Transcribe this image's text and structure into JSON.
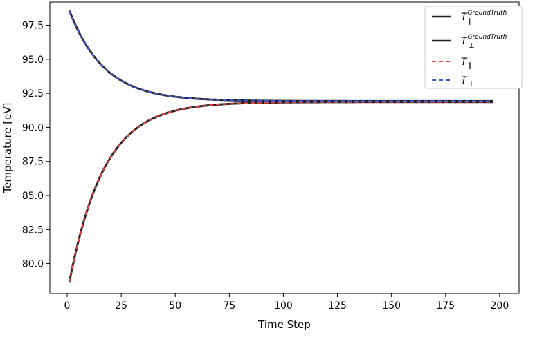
{
  "chart_data": {
    "type": "line",
    "title": "",
    "xlabel": "Time Step",
    "ylabel": "Temperature [eV]",
    "xlim": [
      -8,
      209
    ],
    "ylim": [
      77.8,
      99.2
    ],
    "x_ticks": [
      0,
      25,
      50,
      75,
      100,
      125,
      150,
      175,
      200
    ],
    "y_ticks": [
      80.0,
      82.5,
      85.0,
      87.5,
      90.0,
      92.5,
      95.0,
      97.5
    ],
    "y_tick_labels": [
      "80.0",
      "82.5",
      "85.0",
      "87.5",
      "90.0",
      "92.5",
      "95.0",
      "97.5"
    ],
    "grid": false,
    "legend_position": "top-right",
    "curves": {
      "x_start": 1,
      "x_end": 197,
      "upper": {
        "start": 98.6,
        "end": 91.93,
        "rate": 0.062
      },
      "lower": {
        "start": 78.6,
        "end": 91.86,
        "rate": 0.062
      }
    },
    "series": [
      {
        "name": "T",
        "sub": "∥",
        "sup": "GroundTruth",
        "style": "solid",
        "color": "#222222",
        "curve": "lower"
      },
      {
        "name": "T",
        "sub": "⊥",
        "sup": "GroundTruth",
        "style": "solid",
        "color": "#222222",
        "curve": "upper"
      },
      {
        "name": "T",
        "sub": "∥",
        "sup": "",
        "style": "dashed",
        "color": "#e8443a",
        "curve": "lower"
      },
      {
        "name": "T",
        "sub": "⊥",
        "sup": "",
        "style": "dashed",
        "color": "#3e5bd4",
        "curve": "upper"
      }
    ]
  }
}
